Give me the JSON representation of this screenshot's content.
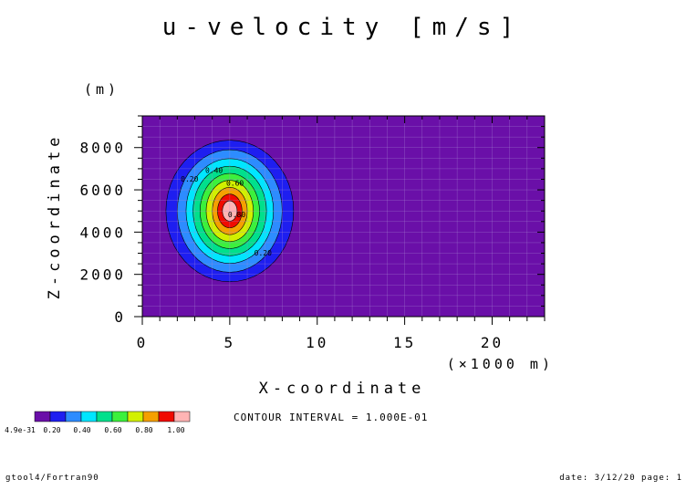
{
  "page": {
    "title": "u-velocity [m/s]",
    "z_unit": "(m)",
    "contour_interval_note": "CONTOUR INTERVAL = 1.000E-01",
    "footer_left": "gtool4/Fortran90",
    "footer_right": "date: 3/12/20 page: 1"
  },
  "chart_data": {
    "type": "contour",
    "title": "u-velocity [m/s]",
    "xlabel": "X-coordinate",
    "xunit": "(×1000 m)",
    "ylabel": "Z-coordinate",
    "yunit": "(m)",
    "xlim": [
      0,
      23
    ],
    "ylim": [
      0,
      9500
    ],
    "x_ticks": [
      0,
      5,
      10,
      15,
      20
    ],
    "y_ticks": [
      0,
      2000,
      4000,
      6000,
      8000
    ],
    "grid": true,
    "field": {
      "description": "single positive blob",
      "center": {
        "x": 5,
        "z": 5000
      },
      "peak_value": 1.0
    },
    "contour_interval": 0.1,
    "levels": [
      {
        "min": 0.0,
        "max": 0.1,
        "color": "#6a0fa8",
        "rx": 5.0,
        "rz": 3700
      },
      {
        "min": 0.1,
        "max": 0.2,
        "color": "#1e1ef0",
        "rx": 3.65,
        "rz": 3350
      },
      {
        "min": 0.2,
        "max": 0.3,
        "color": "#2d8cff",
        "rx": 3.0,
        "rz": 2900
      },
      {
        "min": 0.3,
        "max": 0.4,
        "color": "#00e6ff",
        "rx": 2.5,
        "rz": 2480
      },
      {
        "min": 0.4,
        "max": 0.5,
        "color": "#00e08c",
        "rx": 2.1,
        "rz": 2120
      },
      {
        "min": 0.5,
        "max": 0.6,
        "color": "#3cf03c",
        "rx": 1.7,
        "rz": 1780
      },
      {
        "min": 0.6,
        "max": 0.7,
        "color": "#d2f000",
        "rx": 1.35,
        "rz": 1450
      },
      {
        "min": 0.7,
        "max": 0.8,
        "color": "#f5a000",
        "rx": 1.0,
        "rz": 1120
      },
      {
        "min": 0.8,
        "max": 0.9,
        "color": "#f00a00",
        "rx": 0.7,
        "rz": 800
      },
      {
        "min": 0.9,
        "max": 1.0,
        "color": "#ffb4b4",
        "rx": 0.42,
        "rz": 480
      }
    ],
    "contour_labels": [
      {
        "text": "0.20",
        "x": 2.7,
        "z": 6400
      },
      {
        "text": "0.40",
        "x": 4.1,
        "z": 6800
      },
      {
        "text": "0.60",
        "x": 5.3,
        "z": 6200
      },
      {
        "text": "0.80",
        "x": 5.4,
        "z": 4700
      },
      {
        "text": "0.20",
        "x": 6.9,
        "z": 2900
      }
    ],
    "colorbar": {
      "labels": [
        "4.9e-31",
        "0.20",
        "0.40",
        "0.60",
        "0.80",
        "1.00"
      ]
    }
  }
}
